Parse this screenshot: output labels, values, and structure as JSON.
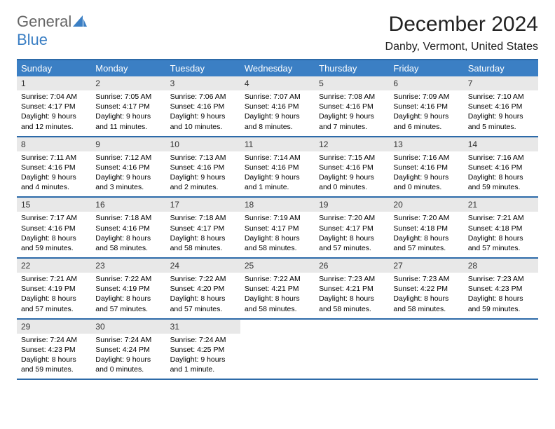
{
  "logo": {
    "text1": "General",
    "text2": "Blue"
  },
  "title": "December 2024",
  "location": "Danby, Vermont, United States",
  "colors": {
    "header_bg": "#3b7fc4",
    "header_border": "#2d6aa8",
    "daynum_bg": "#e8e8e8",
    "text": "#000000",
    "logo_grey": "#666666",
    "logo_blue": "#3b7fc4"
  },
  "weekdays": [
    "Sunday",
    "Monday",
    "Tuesday",
    "Wednesday",
    "Thursday",
    "Friday",
    "Saturday"
  ],
  "weeks": [
    [
      {
        "n": "1",
        "sr": "Sunrise: 7:04 AM",
        "ss": "Sunset: 4:17 PM",
        "dl": "Daylight: 9 hours and 12 minutes."
      },
      {
        "n": "2",
        "sr": "Sunrise: 7:05 AM",
        "ss": "Sunset: 4:17 PM",
        "dl": "Daylight: 9 hours and 11 minutes."
      },
      {
        "n": "3",
        "sr": "Sunrise: 7:06 AM",
        "ss": "Sunset: 4:16 PM",
        "dl": "Daylight: 9 hours and 10 minutes."
      },
      {
        "n": "4",
        "sr": "Sunrise: 7:07 AM",
        "ss": "Sunset: 4:16 PM",
        "dl": "Daylight: 9 hours and 8 minutes."
      },
      {
        "n": "5",
        "sr": "Sunrise: 7:08 AM",
        "ss": "Sunset: 4:16 PM",
        "dl": "Daylight: 9 hours and 7 minutes."
      },
      {
        "n": "6",
        "sr": "Sunrise: 7:09 AM",
        "ss": "Sunset: 4:16 PM",
        "dl": "Daylight: 9 hours and 6 minutes."
      },
      {
        "n": "7",
        "sr": "Sunrise: 7:10 AM",
        "ss": "Sunset: 4:16 PM",
        "dl": "Daylight: 9 hours and 5 minutes."
      }
    ],
    [
      {
        "n": "8",
        "sr": "Sunrise: 7:11 AM",
        "ss": "Sunset: 4:16 PM",
        "dl": "Daylight: 9 hours and 4 minutes."
      },
      {
        "n": "9",
        "sr": "Sunrise: 7:12 AM",
        "ss": "Sunset: 4:16 PM",
        "dl": "Daylight: 9 hours and 3 minutes."
      },
      {
        "n": "10",
        "sr": "Sunrise: 7:13 AM",
        "ss": "Sunset: 4:16 PM",
        "dl": "Daylight: 9 hours and 2 minutes."
      },
      {
        "n": "11",
        "sr": "Sunrise: 7:14 AM",
        "ss": "Sunset: 4:16 PM",
        "dl": "Daylight: 9 hours and 1 minute."
      },
      {
        "n": "12",
        "sr": "Sunrise: 7:15 AM",
        "ss": "Sunset: 4:16 PM",
        "dl": "Daylight: 9 hours and 0 minutes."
      },
      {
        "n": "13",
        "sr": "Sunrise: 7:16 AM",
        "ss": "Sunset: 4:16 PM",
        "dl": "Daylight: 9 hours and 0 minutes."
      },
      {
        "n": "14",
        "sr": "Sunrise: 7:16 AM",
        "ss": "Sunset: 4:16 PM",
        "dl": "Daylight: 8 hours and 59 minutes."
      }
    ],
    [
      {
        "n": "15",
        "sr": "Sunrise: 7:17 AM",
        "ss": "Sunset: 4:16 PM",
        "dl": "Daylight: 8 hours and 59 minutes."
      },
      {
        "n": "16",
        "sr": "Sunrise: 7:18 AM",
        "ss": "Sunset: 4:16 PM",
        "dl": "Daylight: 8 hours and 58 minutes."
      },
      {
        "n": "17",
        "sr": "Sunrise: 7:18 AM",
        "ss": "Sunset: 4:17 PM",
        "dl": "Daylight: 8 hours and 58 minutes."
      },
      {
        "n": "18",
        "sr": "Sunrise: 7:19 AM",
        "ss": "Sunset: 4:17 PM",
        "dl": "Daylight: 8 hours and 58 minutes."
      },
      {
        "n": "19",
        "sr": "Sunrise: 7:20 AM",
        "ss": "Sunset: 4:17 PM",
        "dl": "Daylight: 8 hours and 57 minutes."
      },
      {
        "n": "20",
        "sr": "Sunrise: 7:20 AM",
        "ss": "Sunset: 4:18 PM",
        "dl": "Daylight: 8 hours and 57 minutes."
      },
      {
        "n": "21",
        "sr": "Sunrise: 7:21 AM",
        "ss": "Sunset: 4:18 PM",
        "dl": "Daylight: 8 hours and 57 minutes."
      }
    ],
    [
      {
        "n": "22",
        "sr": "Sunrise: 7:21 AM",
        "ss": "Sunset: 4:19 PM",
        "dl": "Daylight: 8 hours and 57 minutes."
      },
      {
        "n": "23",
        "sr": "Sunrise: 7:22 AM",
        "ss": "Sunset: 4:19 PM",
        "dl": "Daylight: 8 hours and 57 minutes."
      },
      {
        "n": "24",
        "sr": "Sunrise: 7:22 AM",
        "ss": "Sunset: 4:20 PM",
        "dl": "Daylight: 8 hours and 57 minutes."
      },
      {
        "n": "25",
        "sr": "Sunrise: 7:22 AM",
        "ss": "Sunset: 4:21 PM",
        "dl": "Daylight: 8 hours and 58 minutes."
      },
      {
        "n": "26",
        "sr": "Sunrise: 7:23 AM",
        "ss": "Sunset: 4:21 PM",
        "dl": "Daylight: 8 hours and 58 minutes."
      },
      {
        "n": "27",
        "sr": "Sunrise: 7:23 AM",
        "ss": "Sunset: 4:22 PM",
        "dl": "Daylight: 8 hours and 58 minutes."
      },
      {
        "n": "28",
        "sr": "Sunrise: 7:23 AM",
        "ss": "Sunset: 4:23 PM",
        "dl": "Daylight: 8 hours and 59 minutes."
      }
    ],
    [
      {
        "n": "29",
        "sr": "Sunrise: 7:24 AM",
        "ss": "Sunset: 4:23 PM",
        "dl": "Daylight: 8 hours and 59 minutes."
      },
      {
        "n": "30",
        "sr": "Sunrise: 7:24 AM",
        "ss": "Sunset: 4:24 PM",
        "dl": "Daylight: 9 hours and 0 minutes."
      },
      {
        "n": "31",
        "sr": "Sunrise: 7:24 AM",
        "ss": "Sunset: 4:25 PM",
        "dl": "Daylight: 9 hours and 1 minute."
      },
      null,
      null,
      null,
      null
    ]
  ]
}
